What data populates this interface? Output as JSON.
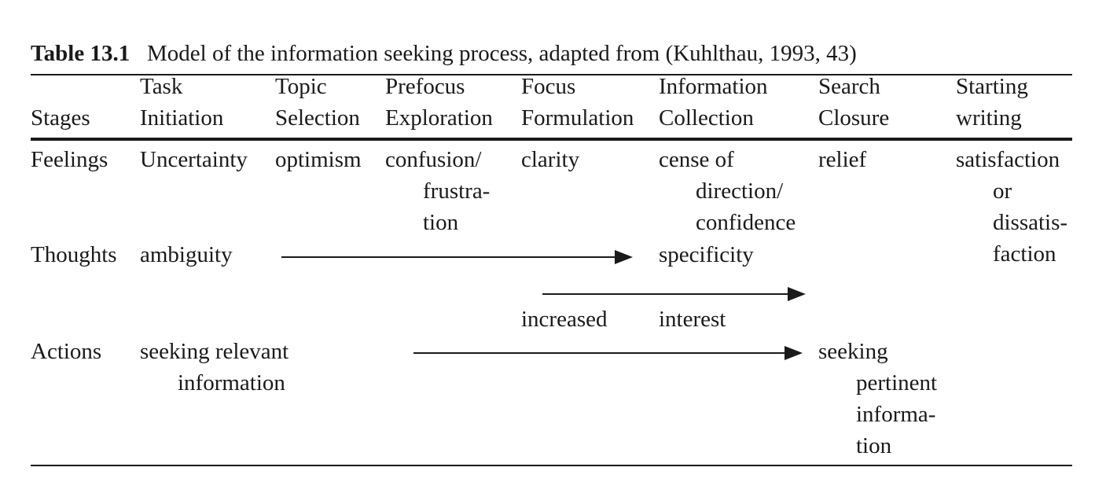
{
  "caption": {
    "label": "Table 13.1",
    "text": "Model of the information seeking process, adapted from (Kuhlthau, 1993, 43)"
  },
  "header": {
    "stages": "Stages",
    "columns": [
      {
        "line1": "Task",
        "line2": "Initiation"
      },
      {
        "line1": "Topic",
        "line2": "Selection"
      },
      {
        "line1": "Prefocus",
        "line2": "Exploration"
      },
      {
        "line1": "Focus",
        "line2": "Formulation"
      },
      {
        "line1": "Information",
        "line2": "Collection"
      },
      {
        "line1": "Search",
        "line2": "Closure"
      },
      {
        "line1": "Starting",
        "line2": "writing"
      }
    ]
  },
  "rows": {
    "feelings": {
      "label": "Feelings",
      "task_initiation": "Uncertainty",
      "topic_selection": "optimism",
      "prefocus": [
        "confusion/",
        "frustra-",
        "tion"
      ],
      "focus": "clarity",
      "information": [
        "cense of",
        "direction/",
        "confidence"
      ],
      "search": "relief",
      "writing": [
        "satisfaction",
        "or",
        "dissatis-",
        "faction"
      ]
    },
    "thoughts": {
      "label": "Thoughts",
      "task_initiation": "ambiguity",
      "information": "specificity",
      "increased": "increased",
      "interest": "interest"
    },
    "actions": {
      "label": "Actions",
      "task_initiation": [
        "seeking relevant",
        "information"
      ],
      "search": [
        "seeking",
        "pertinent",
        "informa-",
        "tion"
      ]
    }
  }
}
